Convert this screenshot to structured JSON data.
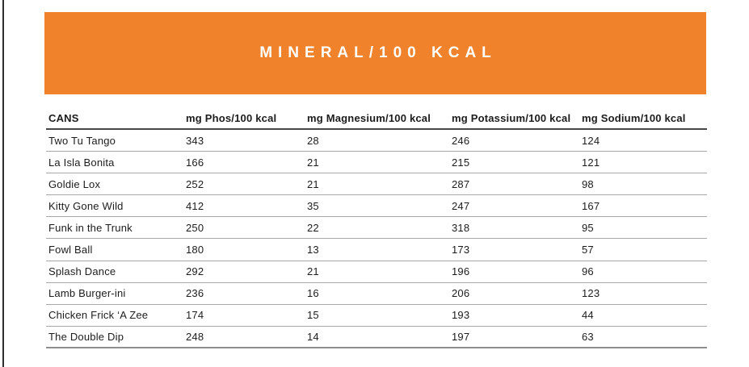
{
  "banner": {
    "title": "MINERAL/100 KCAL"
  },
  "colors": {
    "banner_background": "#F0822C",
    "banner_text": "#FFFFFF",
    "table_text": "#1C1C1C",
    "header_rule": "#474747",
    "row_rule": "#A8A8A8"
  },
  "chart_data": {
    "type": "table",
    "title": "MINERAL/100 KCAL",
    "columns": [
      "CANS",
      "mg Phos/100 kcal",
      "mg Magnesium/100 kcal",
      "mg Potassium/100 kcal",
      "mg Sodium/100 kcal"
    ],
    "rows": [
      [
        "Two Tu Tango",
        "343",
        "28",
        "246",
        "124"
      ],
      [
        "La Isla Bonita",
        "166",
        "21",
        "215",
        "121"
      ],
      [
        "Goldie Lox",
        "252",
        "21",
        "287",
        "98"
      ],
      [
        "Kitty Gone Wild",
        "412",
        "35",
        "247",
        "167"
      ],
      [
        "Funk in the Trunk",
        "250",
        "22",
        "318",
        "95"
      ],
      [
        "Fowl Ball",
        "180",
        "13",
        "173",
        "57"
      ],
      [
        "Splash Dance",
        "292",
        "21",
        "196",
        "96"
      ],
      [
        "Lamb Burger-ini",
        "236",
        "16",
        "206",
        "123"
      ],
      [
        "Chicken Frick ‘A Zee",
        "174",
        "15",
        "193",
        "44"
      ],
      [
        "The Double Dip",
        "248",
        "14",
        "197",
        "63"
      ]
    ]
  }
}
